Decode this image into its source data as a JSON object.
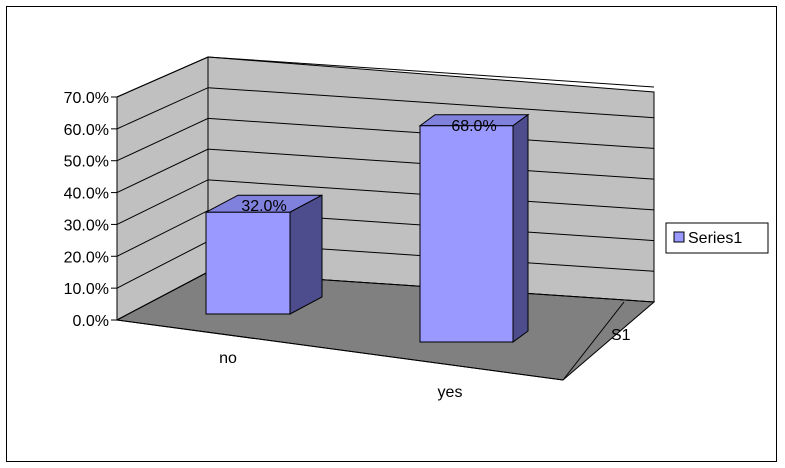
{
  "chart_data": {
    "type": "bar",
    "style": "3d-column",
    "categories": [
      "no",
      "yes"
    ],
    "series": [
      {
        "name": "Series1",
        "values": [
          32.0,
          68.0
        ]
      }
    ],
    "data_labels": [
      "32.0%",
      "68.0%"
    ],
    "y_ticks": [
      "0.0%",
      "10.0%",
      "20.0%",
      "30.0%",
      "40.0%",
      "50.0%",
      "60.0%",
      "70.0%"
    ],
    "ylim": [
      0,
      70
    ],
    "depth_axis_label": "S1",
    "legend": {
      "placement": "right",
      "entry": "Series1"
    },
    "grid": true,
    "colors": {
      "bar_front": "#9999ff",
      "bar_side": "#4d4d8e",
      "bar_top": "#8080dd",
      "wall": "#c0c0c0",
      "floor": "#808080"
    }
  }
}
